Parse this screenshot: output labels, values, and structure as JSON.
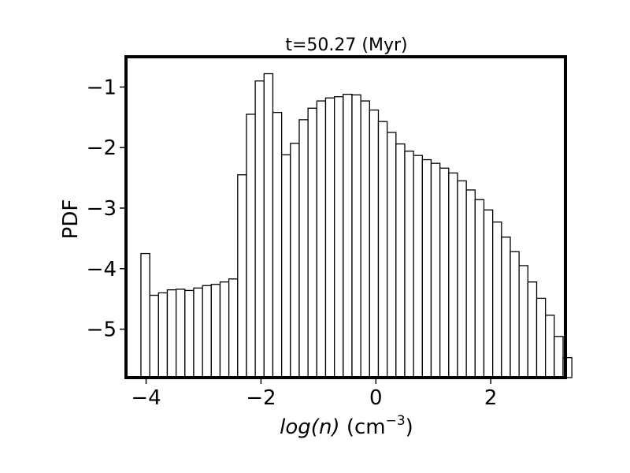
{
  "chart_data": {
    "type": "bar",
    "title": "t=50.27 (Myr)",
    "xlabel_italic": "log(n)",
    "xlabel_unit_base": "(cm",
    "xlabel_unit_exp": "−3",
    "xlabel_unit_close": ")",
    "ylabel": "PDF",
    "xlim": [
      -4.35,
      3.3
    ],
    "ylim": [
      -5.8,
      -0.5
    ],
    "xticks": [
      -4,
      -2,
      0,
      2
    ],
    "xtick_labels": [
      "−4",
      "−2",
      "0",
      "2"
    ],
    "yticks": [
      -5,
      -4,
      -3,
      -2,
      -1
    ],
    "ytick_labels": [
      "−5",
      "−4",
      "−3",
      "−2",
      "−1"
    ],
    "bin_start": -4.09,
    "bin_width": 0.1531,
    "values": [
      -3.75,
      -4.44,
      -4.4,
      -4.35,
      -4.34,
      -4.36,
      -4.32,
      -4.28,
      -4.26,
      -4.22,
      -4.17,
      -2.45,
      -1.45,
      -0.9,
      -0.78,
      -1.42,
      -2.12,
      -1.93,
      -1.54,
      -1.35,
      -1.23,
      -1.18,
      -1.16,
      -1.12,
      -1.13,
      -1.23,
      -1.38,
      -1.57,
      -1.75,
      -1.94,
      -2.06,
      -2.13,
      -2.2,
      -2.26,
      -2.34,
      -2.42,
      -2.55,
      -2.7,
      -2.86,
      -3.03,
      -3.23,
      -3.48,
      -3.72,
      -3.95,
      -4.22,
      -4.49,
      -4.77,
      -5.12,
      -5.47
    ],
    "bar_fill": "#ffffff",
    "bar_edge": "#000000"
  }
}
